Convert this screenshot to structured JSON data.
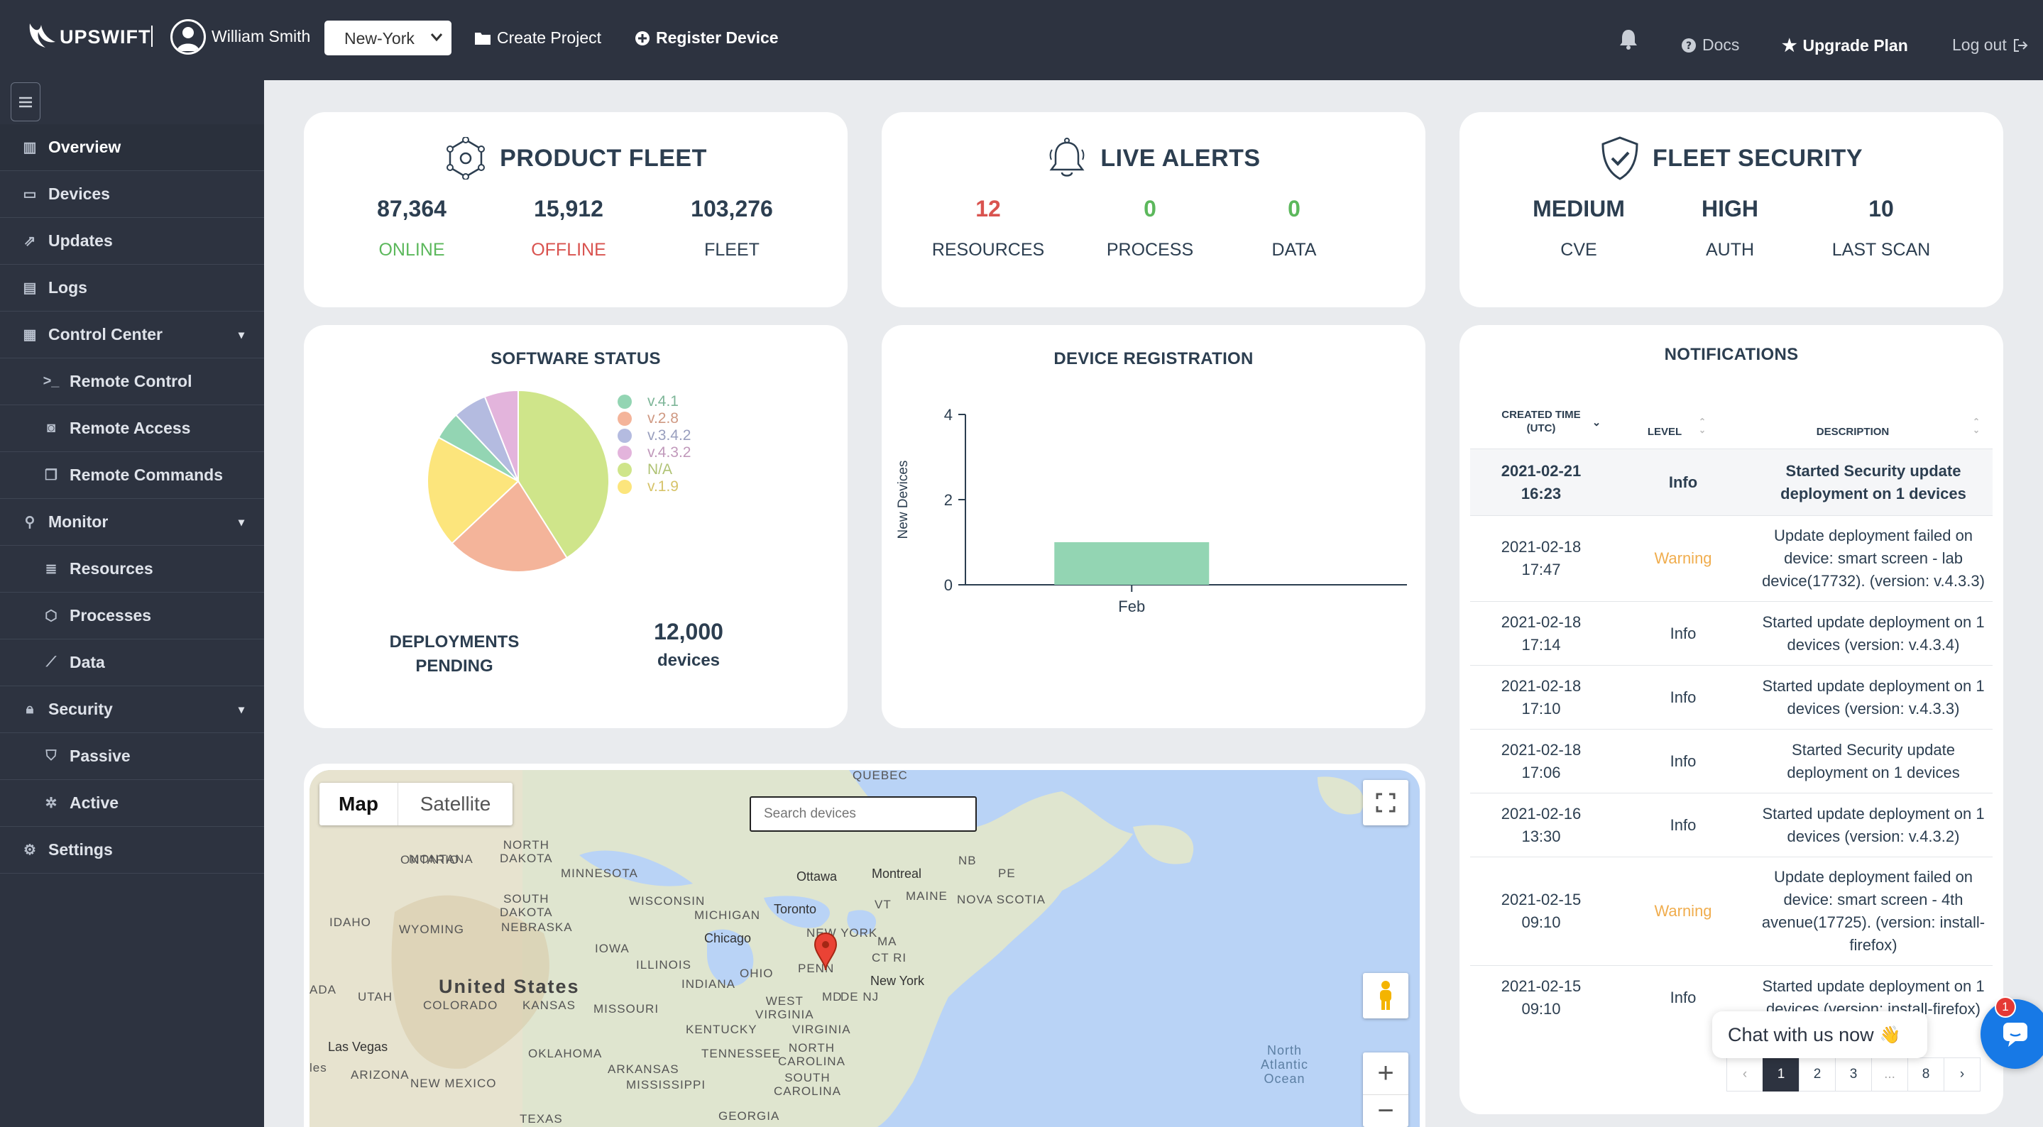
{
  "header": {
    "logo_text": "UPSWIFT",
    "user_name": "William Smith",
    "location": "New-York",
    "create_project": "Create Project",
    "register_device": "Register Device",
    "docs": "Docs",
    "upgrade": "Upgrade Plan",
    "logout": "Log out"
  },
  "sidebar": {
    "items": [
      {
        "label": "Overview",
        "icon": "bar-chart-icon"
      },
      {
        "label": "Devices",
        "icon": "monitor-icon"
      },
      {
        "label": "Updates",
        "icon": "external-link-icon"
      },
      {
        "label": "Logs",
        "icon": "file-icon"
      },
      {
        "label": "Control Center",
        "icon": "grid-icon"
      },
      {
        "label": "Remote Control",
        "icon": "terminal-icon"
      },
      {
        "label": "Remote Access",
        "icon": "remote-access-icon"
      },
      {
        "label": "Remote Commands",
        "icon": "windows-icon"
      },
      {
        "label": "Monitor",
        "icon": "search-icon"
      },
      {
        "label": "Resources",
        "icon": "server-icon"
      },
      {
        "label": "Processes",
        "icon": "cube-icon"
      },
      {
        "label": "Data",
        "icon": "line-chart-icon"
      },
      {
        "label": "Security",
        "icon": "lock-icon"
      },
      {
        "label": "Passive",
        "icon": "shield-icon"
      },
      {
        "label": "Active",
        "icon": "bug-icon"
      },
      {
        "label": "Settings",
        "icon": "gear-icon"
      }
    ]
  },
  "fleet": {
    "title": "PRODUCT FLEET",
    "online_value": "87,364",
    "online_label": "ONLINE",
    "offline_value": "15,912",
    "offline_label": "OFFLINE",
    "fleet_value": "103,276",
    "fleet_label": "FLEET"
  },
  "alerts": {
    "title": "LIVE ALERTS",
    "resources_value": "12",
    "resources_label": "RESOURCES",
    "process_value": "0",
    "process_label": "PROCESS",
    "data_value": "0",
    "data_label": "DATA"
  },
  "security": {
    "title": "FLEET SECURITY",
    "cve_value": "MEDIUM",
    "cve_label": "CVE",
    "auth_value": "HIGH",
    "auth_label": "AUTH",
    "scan_value": "10",
    "scan_label": "LAST SCAN"
  },
  "software": {
    "title": "SOFTWARE STATUS",
    "deploy_label_1": "DEPLOYMENTS",
    "deploy_label_2": "PENDING",
    "deploy_value": "12,000",
    "deploy_unit": "devices"
  },
  "registration": {
    "title": "DEVICE REGISTRATION"
  },
  "notifications": {
    "title": "NOTIFICATIONS",
    "col_time_1": "CREATED TIME",
    "col_time_2": "(UTC)",
    "col_level": "LEVEL",
    "col_desc": "DESCRIPTION",
    "rows": [
      {
        "date": "2021-02-21",
        "time": "16:23",
        "level": "Info",
        "desc": "Started Security update deployment on 1 devices"
      },
      {
        "date": "2021-02-18",
        "time": "17:47",
        "level": "Warning",
        "desc": "Update deployment failed on device: smart screen - lab device(17732). (version: v.4.3.3)"
      },
      {
        "date": "2021-02-18",
        "time": "17:14",
        "level": "Info",
        "desc": "Started update deployment on 1 devices (version: v.4.3.4)"
      },
      {
        "date": "2021-02-18",
        "time": "17:10",
        "level": "Info",
        "desc": "Started update deployment on 1 devices (version: v.4.3.3)"
      },
      {
        "date": "2021-02-18",
        "time": "17:06",
        "level": "Info",
        "desc": "Started Security update deployment on 1 devices"
      },
      {
        "date": "2021-02-16",
        "time": "13:30",
        "level": "Info",
        "desc": "Started update deployment on 1 devices (version: v.4.3.2)"
      },
      {
        "date": "2021-02-15",
        "time": "09:10",
        "level": "Warning",
        "desc": "Update deployment failed on device: smart screen - 4th avenue(17725). (version: install-firefox)"
      },
      {
        "date": "2021-02-15",
        "time": "09:10",
        "level": "Info",
        "desc": "Started update deployment on 1 devices (version: install-firefox)"
      }
    ],
    "pages": [
      "‹",
      "1",
      "2",
      "3",
      "...",
      "8",
      "›"
    ],
    "current_page": "1"
  },
  "chat": {
    "label": "Chat with us now",
    "emoji": "👋",
    "badge": "1"
  },
  "map": {
    "tab_map": "Map",
    "tab_satellite": "Satellite",
    "search_placeholder": "Search devices",
    "labels": {
      "ontario": "ONTARIO",
      "quebec": "QUEBEC",
      "montana": "MONTANA",
      "north_dakota_1": "NORTH",
      "north_dakota_2": "DAKOTA",
      "south_dakota_1": "SOUTH",
      "south_dakota_2": "DAKOTA",
      "minnesota": "MINNESOTA",
      "wisconsin": "WISCONSIN",
      "michigan": "MICHIGAN",
      "idaho": "IDAHO",
      "wyoming": "WYOMING",
      "nebraska": "NEBRASKA",
      "iowa": "IOWA",
      "illinois": "ILLINOIS",
      "indiana": "INDIANA",
      "ohio": "OHIO",
      "penn": "PENN",
      "new_york": "NEW YORK",
      "maine": "MAINE",
      "vt": "VT",
      "nb": "NB",
      "pe": "PE",
      "nova_scotia": "NOVA SCOTIA",
      "ma": "MA",
      "ct": "CT RI",
      "nj": "DE NJ",
      "ottawa": "Ottawa",
      "montreal": "Montreal",
      "toronto": "Toronto",
      "chicago": "Chicago",
      "ny_city": "New York",
      "united_states": "United States",
      "utah": "UTAH",
      "colorado": "COLORADO",
      "kansas": "KANSAS",
      "missouri": "MISSOURI",
      "kentucky": "KENTUCKY",
      "west_virginia_1": "WEST",
      "west_virginia_2": "VIRGINIA",
      "virginia": "VIRGINIA",
      "md": "MD",
      "ada": "ADA",
      "las_vegas": "Las Vegas",
      "oklahoma": "OKLAHOMA",
      "tennessee": "TENNESSEE",
      "north_carolina_1": "NORTH",
      "north_carolina_2": "CAROLINA",
      "arizona": "ARIZONA",
      "new_mexico": "NEW MEXICO",
      "arkansas": "ARKANSAS",
      "south_carolina_1": "SOUTH",
      "south_carolina_2": "CAROLINA",
      "mississippi": "MISSISSIPPI",
      "texas": "TEXAS",
      "georgia": "GEORGIA",
      "les": "les",
      "atlantic_1": "North",
      "atlantic_2": "Atlantic",
      "atlantic_3": "Ocean"
    }
  },
  "colors": {
    "online": "#5cb85c",
    "offline": "#d9534f",
    "warning": "#f0ad4e",
    "navy": "#2c3e50",
    "sidebar_bg": "#2d3340"
  },
  "chart_data": [
    {
      "type": "pie",
      "title": "SOFTWARE STATUS",
      "categories": [
        "v.4.1",
        "v.2.8",
        "v.3.4.2",
        "v.4.3.2",
        "N/A",
        "v.1.9"
      ],
      "values": [
        5,
        22,
        6,
        6,
        41,
        20
      ],
      "colors": [
        "#93d5b3",
        "#f4b49a",
        "#b4bbe0",
        "#e3b4dc",
        "#cfe58a",
        "#fce57c"
      ],
      "legend_position": "right"
    },
    {
      "type": "bar",
      "title": "DEVICE REGISTRATION",
      "categories": [
        "Feb"
      ],
      "values": [
        1
      ],
      "ylabel": "New Devices",
      "yticks": [
        0,
        2,
        4
      ],
      "ylim": [
        0,
        4
      ],
      "color": "#93d5b3"
    }
  ]
}
